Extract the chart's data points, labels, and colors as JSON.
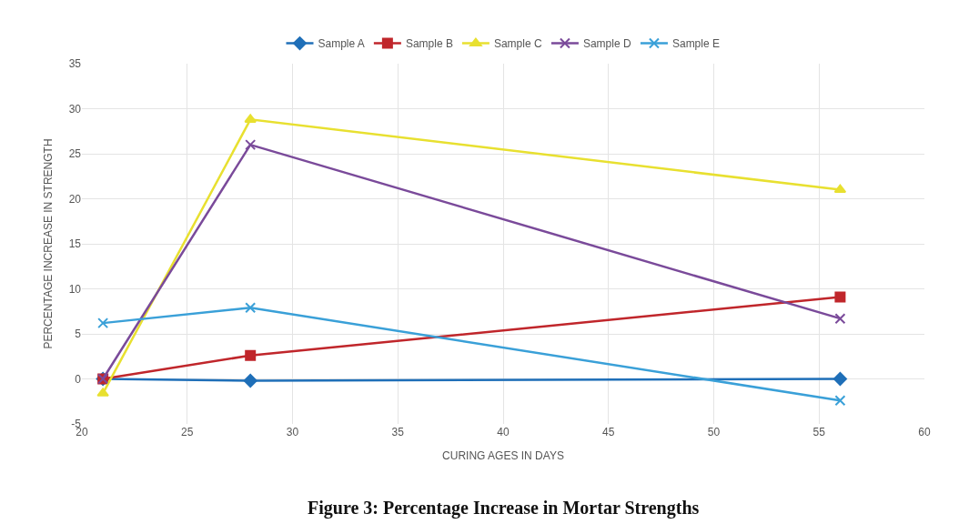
{
  "chart_data": {
    "type": "line",
    "title": "Figure 3: Percentage Increase in Mortar Strengths",
    "xlabel": "CURING AGES IN DAYS",
    "ylabel": "PERCENTAGE INCREASE IN STRENGTH",
    "x": [
      21,
      28,
      56
    ],
    "series": [
      {
        "name": "Sample A",
        "color": "#1f6fb8",
        "marker": "diamond",
        "values": [
          0,
          -0.2,
          0
        ]
      },
      {
        "name": "Sample B",
        "color": "#c0262b",
        "marker": "square",
        "values": [
          0,
          2.6,
          9.1
        ]
      },
      {
        "name": "Sample C",
        "color": "#e8e030",
        "marker": "triangle",
        "values": [
          -1.6,
          28.8,
          21
        ]
      },
      {
        "name": "Sample D",
        "color": "#7a4a9a",
        "marker": "cross",
        "values": [
          0,
          26,
          6.7
        ]
      },
      {
        "name": "Sample E",
        "color": "#3aa0d8",
        "marker": "cross",
        "values": [
          6.2,
          7.9,
          -2.4
        ]
      }
    ],
    "xlim": [
      20,
      60
    ],
    "xticks": [
      20,
      25,
      30,
      35,
      40,
      45,
      50,
      55,
      60
    ],
    "ylim": [
      -5,
      35
    ],
    "yticks": [
      -5,
      0,
      5,
      10,
      15,
      20,
      25,
      30,
      35
    ],
    "grid": true,
    "legend": "top"
  }
}
